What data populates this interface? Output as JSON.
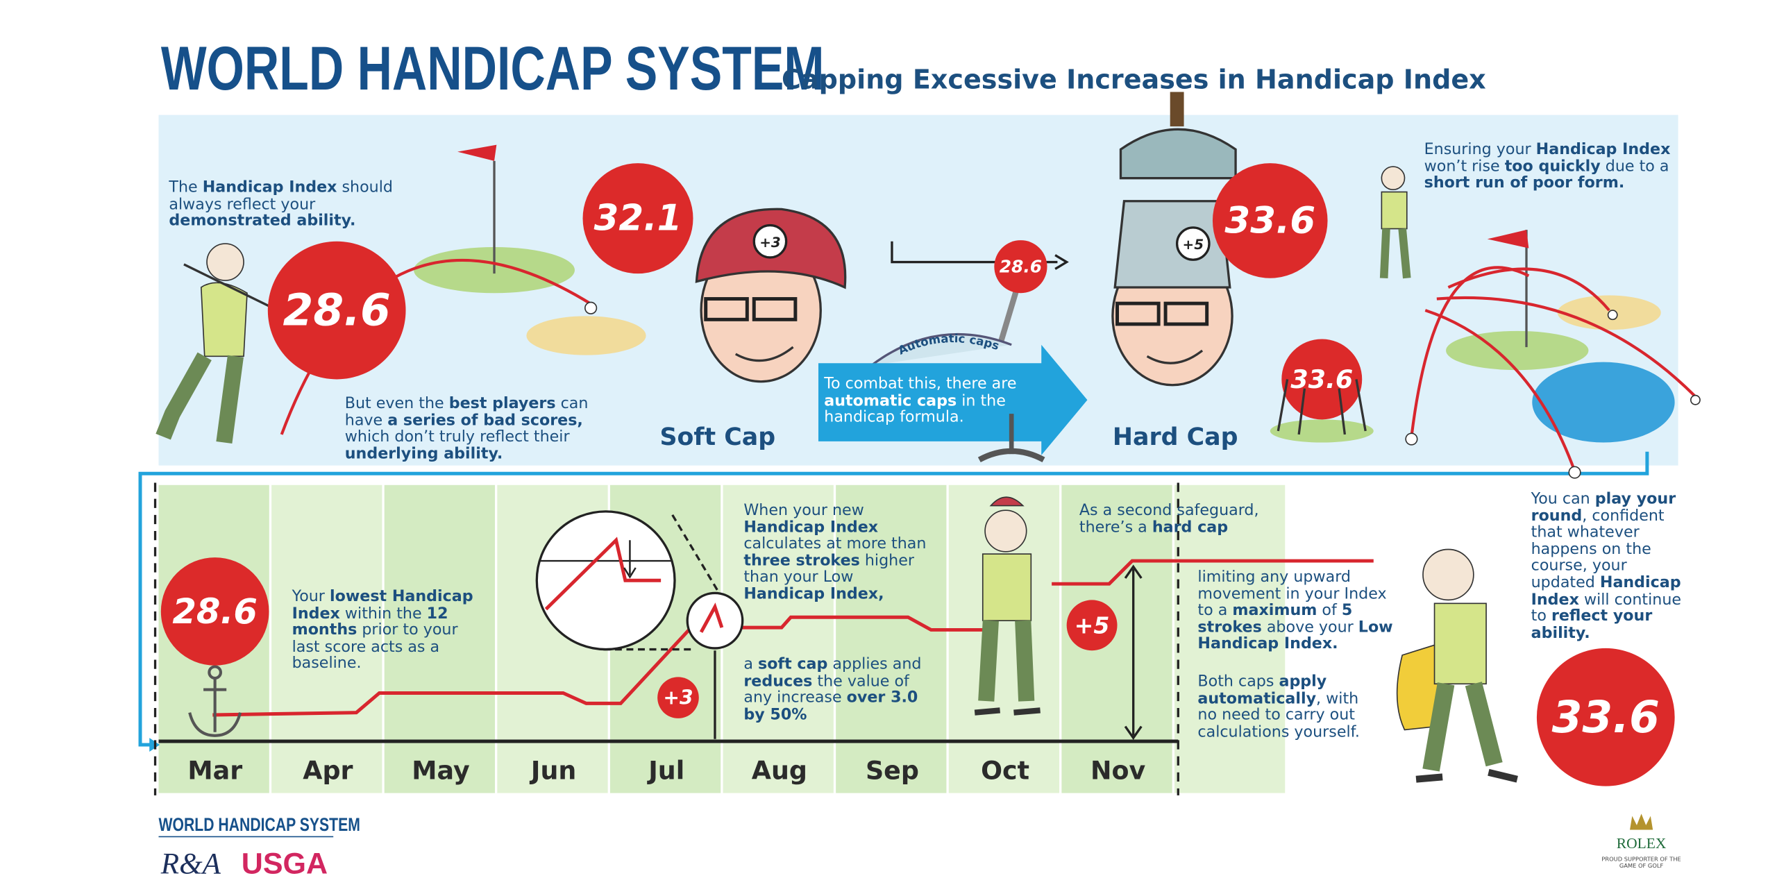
{
  "header": {
    "title": "WORLD HANDICAP SYSTEM",
    "subtitle": "Capping Excessive Increases in Handicap Index"
  },
  "top": {
    "intro": [
      {
        "text": "The ",
        "bold": false
      },
      {
        "text": "Handicap Index",
        "bold": true
      },
      {
        "text": " should always reflect your ",
        "bold": false
      },
      {
        "text": "demonstrated ability.",
        "bold": true
      }
    ],
    "score_start": 28.6,
    "bad_scores": [
      {
        "text": "But even the ",
        "bold": false
      },
      {
        "text": "best players",
        "bold": true
      },
      {
        "text": " can have ",
        "bold": false
      },
      {
        "text": "a series of bad scores,",
        "bold": true
      },
      {
        "text": " which don’t truly reflect their ",
        "bold": false
      },
      {
        "text": "underlying ability.",
        "bold": true
      }
    ],
    "score_soft": 32.1,
    "soft_cap_badge": "+3",
    "soft_cap_label": "Soft Cap",
    "automatic_caps": "Automatic caps",
    "machine_score": 28.6,
    "arrow_text": [
      {
        "text": "To combat this, there are ",
        "bold": false
      },
      {
        "text": "automatic caps",
        "bold": true
      },
      {
        "text": " in the handicap formula.",
        "bold": false
      }
    ],
    "score_hard": 33.6,
    "hard_cap_badge": "+5",
    "score_caged": 33.6,
    "hard_cap_label": "Hard Cap",
    "ensuring": [
      {
        "text": "Ensuring your ",
        "bold": false
      },
      {
        "text": "Handicap Index",
        "bold": true
      },
      {
        "text": " won’t rise ",
        "bold": false
      },
      {
        "text": "too quickly",
        "bold": true
      },
      {
        "text": " due to a ",
        "bold": false
      },
      {
        "text": "short run of poor form.",
        "bold": true
      }
    ]
  },
  "timeline": {
    "baseline_score": 28.6,
    "lowest": [
      {
        "text": "Your ",
        "bold": false
      },
      {
        "text": "lowest Handicap Index",
        "bold": true
      },
      {
        "text": " within the ",
        "bold": false
      },
      {
        "text": "12 months",
        "bold": true
      },
      {
        "text": " prior to your last score acts as a baseline.",
        "bold": false
      }
    ],
    "months": [
      "Mar",
      "Apr",
      "May",
      "Jun",
      "Jul",
      "Aug",
      "Sep",
      "Oct",
      "Nov"
    ],
    "soft_cap_when": [
      {
        "text": "When your new ",
        "bold": false
      },
      {
        "text": "Handicap Index",
        "bold": true
      },
      {
        "text": " calculates at more than ",
        "bold": false
      },
      {
        "text": "three strokes",
        "bold": true
      },
      {
        "text": " higher than your Low ",
        "bold": false
      },
      {
        "text": "Handicap Index,",
        "bold": true
      }
    ],
    "soft_cap_applies": [
      {
        "text": "a ",
        "bold": false
      },
      {
        "text": "soft cap",
        "bold": true
      },
      {
        "text": " applies and ",
        "bold": false
      },
      {
        "text": "reduces",
        "bold": true
      },
      {
        "text": " the value of any increase ",
        "bold": false
      },
      {
        "text": "over 3.0 by 50%",
        "bold": true
      }
    ],
    "soft_cap_amount": "+3",
    "second_safeguard": [
      {
        "text": "As a second safeguard, there’s a ",
        "bold": false
      },
      {
        "text": "hard cap",
        "bold": true
      }
    ],
    "hard_cap_amount": "+5",
    "limiting": [
      {
        "text": "limiting any upward movement in your Index to a ",
        "bold": false
      },
      {
        "text": "maximum",
        "bold": true
      },
      {
        "text": " of ",
        "bold": false
      },
      {
        "text": "5 strokes",
        "bold": true
      },
      {
        "text": " above your ",
        "bold": false
      },
      {
        "text": "Low Handicap Index.",
        "bold": true
      }
    ],
    "both_caps": [
      {
        "text": "Both caps ",
        "bold": false
      },
      {
        "text": "apply automatically",
        "bold": true
      },
      {
        "text": ", with no need to carry out calculations yourself.",
        "bold": false
      }
    ]
  },
  "side": {
    "play_round": [
      {
        "text": "You can ",
        "bold": false
      },
      {
        "text": "play your round",
        "bold": true
      },
      {
        "text": ", confident that whatever happens on the course, your updated ",
        "bold": false
      },
      {
        "text": "Handicap Index",
        "bold": true
      },
      {
        "text": " will continue to ",
        "bold": false
      },
      {
        "text": "reflect your ability.",
        "bold": true
      }
    ],
    "final_score": 33.6
  },
  "footer": {
    "wordmark": "WORLD HANDICAP SYSTEM",
    "ra": "R&A",
    "usga": "USGA",
    "rolex": "ROLEX",
    "rolex_tagline": "PROUD SUPPORTER OF THE GAME OF GOLF"
  }
}
